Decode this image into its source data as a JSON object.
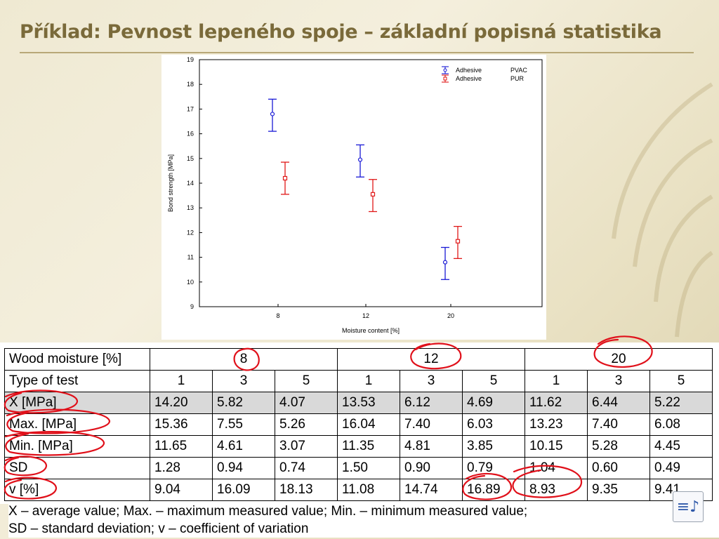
{
  "slide": {
    "title": "Příklad: Pevnost lepeného spoje – základní popisná statistika"
  },
  "chart_data": {
    "type": "scatter",
    "title": "",
    "xlabel": "Moisture content [%]",
    "ylabel": "Bond strength [MPa]",
    "categories": [
      "8",
      "12",
      "20"
    ],
    "ylim": [
      9,
      19
    ],
    "yticks": [
      9,
      10,
      11,
      12,
      13,
      14,
      15,
      16,
      17,
      18,
      19
    ],
    "grid": false,
    "legend_position": "top-right",
    "series": [
      {
        "name": "Adhesive PVAC",
        "legend_prefix": "Adhesive",
        "legend_suffix": "PVAC",
        "color": "#1a1ad6",
        "marker": "circle",
        "means": [
          16.8,
          14.95,
          10.8
        ],
        "upper": [
          17.4,
          15.55,
          11.4
        ],
        "lower": [
          16.1,
          14.25,
          10.1
        ]
      },
      {
        "name": "Adhesive PUR",
        "legend_prefix": "Adhesive",
        "legend_suffix": "PUR",
        "color": "#e01818",
        "marker": "square",
        "means": [
          14.2,
          13.55,
          11.65
        ],
        "upper": [
          14.85,
          14.15,
          12.25
        ],
        "lower": [
          13.55,
          12.85,
          10.95
        ]
      }
    ]
  },
  "table": {
    "moisture_label": "Wood moisture [%]",
    "moisture_groups": [
      "8",
      "12",
      "20"
    ],
    "test_label": "Type of test",
    "test_types": [
      "1",
      "3",
      "5",
      "1",
      "3",
      "5",
      "1",
      "3",
      "5"
    ],
    "rows": [
      {
        "label": "X [MPa]",
        "values": [
          "14.20",
          "5.82",
          "4.07",
          "13.53",
          "6.12",
          "4.69",
          "11.62",
          "6.44",
          "5.22"
        ]
      },
      {
        "label": "Max. [MPa]",
        "values": [
          "15.36",
          "7.55",
          "5.26",
          "16.04",
          "7.40",
          "6.03",
          "13.23",
          "7.40",
          "6.08"
        ]
      },
      {
        "label": "Min. [MPa]",
        "values": [
          "11.65",
          "4.61",
          "3.07",
          "11.35",
          "4.81",
          "3.85",
          "10.15",
          "5.28",
          "4.45"
        ]
      },
      {
        "label": "SD",
        "values": [
          "1.28",
          "0.94",
          "0.74",
          "1.50",
          "0.90",
          "0.79",
          "1.04",
          "0.60",
          "0.49"
        ]
      },
      {
        "label": "v [%]",
        "values": [
          "9.04",
          "16.09",
          "18.13",
          "11.08",
          "14.74",
          "16.89",
          "8.93",
          "9.35",
          "9.41"
        ]
      }
    ]
  },
  "footnote": {
    "line1": "X – average value; Max. – maximum measured value; Min. – minimum measured value;",
    "line2": "SD – standard deviation; v – coefficient of variation"
  },
  "audio_icon": {
    "name": "audio-icon",
    "glyph": "≡♪"
  },
  "annotation_color": "#e0101a"
}
